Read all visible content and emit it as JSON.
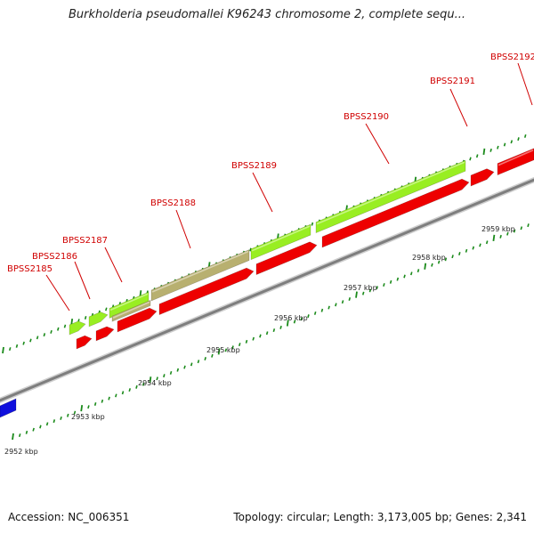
{
  "title": "Burkholderia pseudomallei K96243 chromosome 2, complete sequ...",
  "footer": {
    "accession": "Accession: NC_006351",
    "summary": "Topology: circular; Length: 3,173,005 bp; Genes: 2,341"
  },
  "colors": {
    "label": "#d00000",
    "tick": "#1a8a1a",
    "backbone": "#8c8c8c",
    "reverse_gene": "#ee0000",
    "forward_gene": "#99ee22",
    "forward_gene_alt": "#b8b070",
    "other_gene": "#1010dd"
  },
  "gene_labels": [
    "BPSS2185",
    "BPSS2186",
    "BPSS2187",
    "BPSS2188",
    "BPSS2189",
    "BPSS2190",
    "BPSS2191",
    "BPSS2192"
  ],
  "kbp_labels": [
    "2952 kbp",
    "2953 kbp",
    "2954 kbp",
    "2955 kbp",
    "2956 kbp",
    "2957 kbp",
    "2958 kbp",
    "2959 kbp"
  ]
}
